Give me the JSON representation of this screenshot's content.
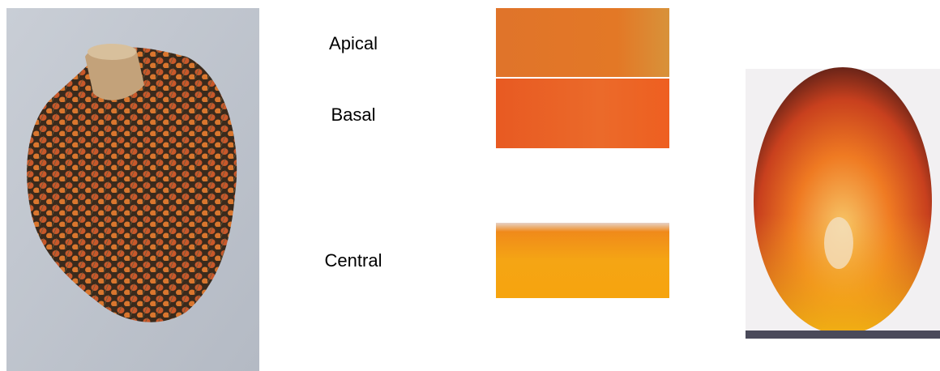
{
  "labels": {
    "apical": "Apical",
    "basal": "Basal",
    "central": "Central"
  }
}
